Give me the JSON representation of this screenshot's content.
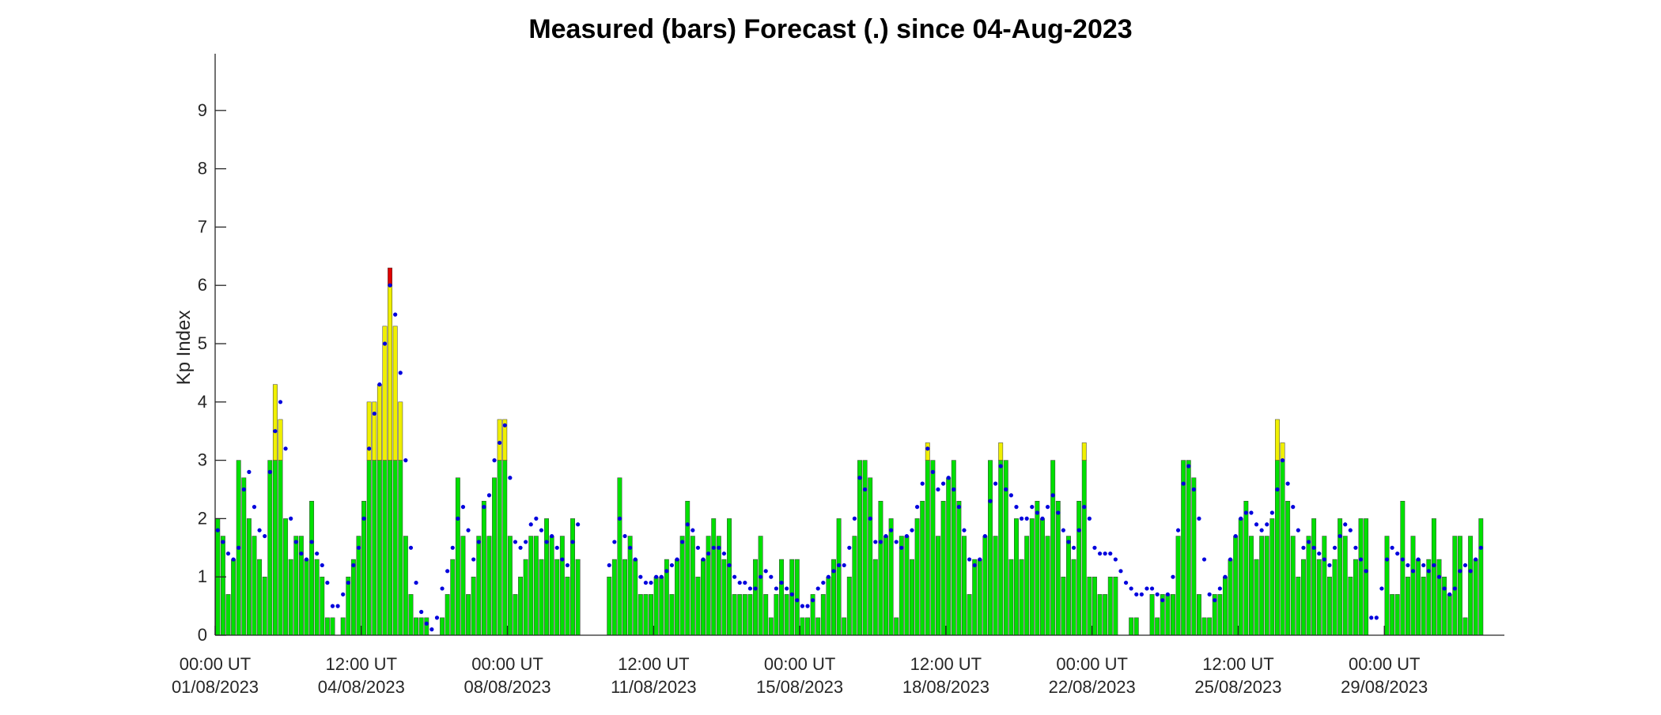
{
  "chart_data": {
    "type": "bar",
    "title": "Measured (bars) Forecast (.) since 04-Aug-2023",
    "xlabel": "",
    "ylabel": "Kp Index",
    "ylim": [
      0,
      10
    ],
    "yticks": [
      0,
      1,
      2,
      3,
      4,
      5,
      6,
      7,
      8,
      9
    ],
    "grid": false,
    "legend": "none",
    "x_start": "00:00 UT 01/08/2023",
    "bar_interval_hours": 3,
    "xlim_index": [
      0,
      247
    ],
    "x_ticks": [
      {
        "index": 0,
        "line1": "00:00 UT",
        "line2": "01/08/2023"
      },
      {
        "index": 28,
        "line1": "12:00 UT",
        "line2": "04/08/2023"
      },
      {
        "index": 56,
        "line1": "00:00 UT",
        "line2": "08/08/2023"
      },
      {
        "index": 84,
        "line1": "12:00 UT",
        "line2": "11/08/2023"
      },
      {
        "index": 112,
        "line1": "00:00 UT",
        "line2": "15/08/2023"
      },
      {
        "index": 140,
        "line1": "12:00 UT",
        "line2": "18/08/2023"
      },
      {
        "index": 168,
        "line1": "00:00 UT",
        "line2": "22/08/2023"
      },
      {
        "index": 196,
        "line1": "12:00 UT",
        "line2": "25/08/2023"
      },
      {
        "index": 224,
        "line1": "00:00 UT",
        "line2": "29/08/2023"
      }
    ],
    "colors": {
      "quiet": "#00e000",
      "active": "#f0f000",
      "storm": "#e00000",
      "forecast": "#0000dd"
    },
    "color_thresholds": {
      "active_above": 3,
      "storm_above": 6
    },
    "series": [
      {
        "name": "Measured",
        "kind": "bar",
        "values": [
          2,
          1.7,
          0.7,
          1.3,
          3,
          2.7,
          2,
          1.7,
          1.3,
          1,
          3,
          4.3,
          3.7,
          2,
          1.3,
          1.7,
          1.7,
          1.3,
          2.3,
          1.3,
          1,
          0.3,
          0.3,
          0,
          0.3,
          1,
          1.3,
          1.7,
          2.3,
          4,
          4,
          4.3,
          5.3,
          6.3,
          5.3,
          4,
          1.7,
          0.7,
          0.3,
          0.3,
          0.3,
          0,
          0,
          0.3,
          0.7,
          1.3,
          2.7,
          1.7,
          0.7,
          1,
          1.7,
          2.3,
          1.7,
          2.7,
          3.7,
          3.7,
          1.7,
          0.7,
          1,
          1.3,
          1.7,
          1.7,
          1.3,
          2,
          1.7,
          1.3,
          1.7,
          1,
          2,
          1.3,
          null,
          null,
          null,
          null,
          null,
          1,
          1.3,
          2.7,
          1.3,
          1.7,
          1.3,
          0.7,
          0.7,
          0.7,
          1,
          1,
          1.3,
          0.7,
          1.3,
          1.7,
          2.3,
          1.7,
          1,
          1.3,
          1.7,
          2,
          1.7,
          1.3,
          2,
          0.7,
          0.7,
          0.7,
          0.7,
          1.3,
          1.7,
          0.7,
          0.3,
          0.7,
          1.3,
          0.7,
          1.3,
          1.3,
          0.3,
          0.3,
          0.7,
          0.3,
          0.7,
          1,
          1.3,
          2,
          0.3,
          1,
          1.7,
          3,
          3,
          2.7,
          1.3,
          2.3,
          1.7,
          2,
          0.3,
          1.7,
          1.7,
          1.3,
          2,
          2.3,
          3.3,
          3,
          1.7,
          2.3,
          2.7,
          3,
          2.3,
          1.7,
          0.7,
          1.3,
          1.3,
          1.7,
          3,
          1.7,
          3.3,
          3,
          1.3,
          2,
          1.3,
          1.7,
          2,
          2.3,
          2,
          1.7,
          3,
          2.3,
          1,
          1.7,
          1.3,
          2.3,
          3.3,
          1,
          1,
          0.7,
          0.7,
          1,
          1,
          0,
          0,
          0.3,
          0.3,
          0,
          0,
          0.7,
          0.3,
          0.7,
          0.7,
          0.7,
          1.7,
          3,
          3,
          2.7,
          0.7,
          0.3,
          0.3,
          0.7,
          0.7,
          1,
          1.3,
          1.7,
          2,
          2.3,
          1.7,
          1.3,
          1.7,
          1.7,
          2,
          3.7,
          3.3,
          2.3,
          1.7,
          1,
          1.3,
          1.7,
          2,
          1.3,
          1.7,
          1,
          1.3,
          2,
          1.7,
          1,
          1.3,
          2,
          2,
          0,
          null,
          null,
          1.7,
          0.7,
          0.7,
          2.3,
          1,
          1.7,
          1.3,
          1,
          1.3,
          2,
          1.3,
          1,
          0.7,
          1.7,
          1.7,
          0.3,
          1.7,
          1.3,
          2
        ]
      },
      {
        "name": "Forecast",
        "kind": "scatter",
        "values": [
          1.8,
          1.6,
          1.4,
          1.3,
          1.5,
          2.5,
          2.8,
          2.2,
          1.8,
          1.7,
          2.8,
          3.5,
          4,
          3.2,
          2,
          1.6,
          1.4,
          1.3,
          1.6,
          1.4,
          1.2,
          0.9,
          0.5,
          0.5,
          0.7,
          0.9,
          1.2,
          1.5,
          2,
          3.2,
          3.8,
          4.3,
          5,
          6,
          5.5,
          4.5,
          3,
          1.5,
          0.9,
          0.4,
          0.2,
          0.1,
          0.3,
          0.8,
          1.1,
          1.5,
          2,
          2.2,
          1.8,
          1.3,
          1.6,
          2.2,
          2.4,
          3,
          3.3,
          3.6,
          2.7,
          1.6,
          1.5,
          1.6,
          1.9,
          2,
          1.8,
          1.6,
          1.7,
          1.5,
          1.3,
          1.2,
          1.6,
          1.9,
          null,
          null,
          null,
          null,
          null,
          1.2,
          1.6,
          2,
          1.7,
          1.5,
          1.3,
          1,
          0.9,
          0.9,
          1,
          1,
          1.1,
          1.2,
          1.3,
          1.6,
          1.9,
          1.8,
          1.5,
          1.3,
          1.4,
          1.5,
          1.5,
          1.4,
          1.2,
          1,
          0.9,
          0.9,
          0.8,
          0.8,
          1,
          1.1,
          1,
          0.8,
          0.9,
          0.8,
          0.7,
          0.6,
          0.5,
          0.5,
          0.6,
          0.8,
          0.9,
          1,
          1.1,
          1.2,
          1.2,
          1.5,
          2,
          2.7,
          2.5,
          2,
          1.6,
          1.6,
          1.7,
          1.8,
          1.6,
          1.5,
          1.7,
          1.8,
          2.2,
          2.6,
          3.2,
          2.8,
          2.5,
          2.6,
          2.7,
          2.5,
          2.2,
          1.8,
          1.3,
          1.2,
          1.3,
          1.7,
          2.3,
          2.6,
          2.9,
          2.5,
          2.4,
          2.2,
          2,
          2,
          2.2,
          2.1,
          2,
          2.2,
          2.4,
          2.1,
          1.8,
          1.6,
          1.5,
          1.8,
          2.2,
          2,
          1.5,
          1.4,
          1.4,
          1.4,
          1.3,
          1.1,
          0.9,
          0.8,
          0.7,
          0.7,
          0.8,
          0.8,
          0.7,
          0.6,
          0.7,
          1,
          1.8,
          2.6,
          2.9,
          2.5,
          2,
          1.3,
          0.7,
          0.6,
          0.8,
          1,
          1.3,
          1.7,
          2,
          2.1,
          2.1,
          1.9,
          1.8,
          1.9,
          2.1,
          2.5,
          3,
          2.6,
          2.2,
          1.8,
          1.5,
          1.6,
          1.5,
          1.4,
          1.3,
          1.2,
          1.5,
          1.7,
          1.9,
          1.8,
          1.5,
          1.3,
          1.1,
          0.3,
          0.3,
          0.8,
          1.3,
          1.5,
          1.4,
          1.3,
          1.2,
          1.1,
          1.3,
          1.2,
          1.1,
          1.2,
          1,
          0.8,
          0.7,
          0.8,
          1.1,
          1.2,
          1.1,
          1.3,
          1.5
        ]
      }
    ]
  }
}
